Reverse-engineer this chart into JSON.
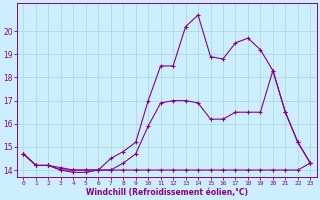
{
  "xlabel": "Windchill (Refroidissement éolien,°C)",
  "background_color": "#cceeff",
  "grid_color": "#aadddd",
  "line_color": "#880088",
  "x_values": [
    0,
    1,
    2,
    3,
    4,
    5,
    6,
    7,
    8,
    9,
    10,
    11,
    12,
    13,
    14,
    15,
    16,
    17,
    18,
    19,
    20,
    21,
    22,
    23
  ],
  "line1": [
    14.7,
    14.2,
    14.2,
    14.0,
    14.0,
    14.0,
    14.0,
    14.0,
    14.0,
    14.0,
    14.0,
    14.0,
    14.0,
    14.0,
    14.0,
    14.0,
    14.0,
    14.0,
    14.0,
    14.0,
    14.0,
    14.0,
    14.0,
    14.3
  ],
  "line2": [
    14.7,
    14.2,
    14.2,
    14.1,
    14.0,
    14.0,
    14.0,
    14.0,
    14.3,
    14.7,
    15.9,
    16.9,
    17.0,
    17.0,
    16.9,
    16.2,
    16.2,
    16.5,
    16.5,
    16.5,
    18.3,
    16.5,
    15.2,
    14.3
  ],
  "line3": [
    14.7,
    14.2,
    14.2,
    14.0,
    13.9,
    13.9,
    14.0,
    14.5,
    14.8,
    15.2,
    17.0,
    18.5,
    18.5,
    20.2,
    20.7,
    18.9,
    18.8,
    19.5,
    19.7,
    19.2,
    18.3,
    16.5,
    15.2,
    14.3
  ],
  "ylim": [
    13.7,
    21.2
  ],
  "yticks": [
    14,
    15,
    16,
    17,
    18,
    19,
    20
  ],
  "figsize": [
    3.2,
    2.0
  ],
  "dpi": 100
}
